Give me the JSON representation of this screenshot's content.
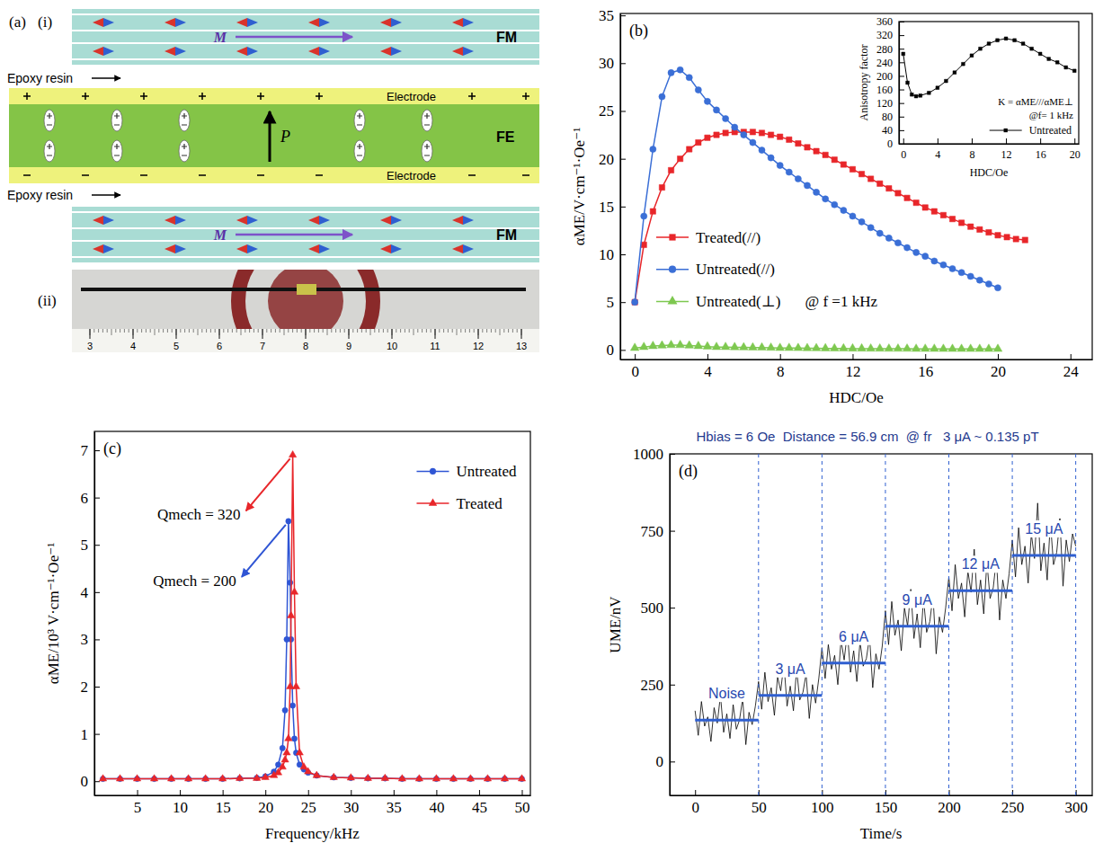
{
  "diagram": {
    "label": "(a)",
    "parts": [
      {
        "label": "(i)",
        "layers": [
          {
            "name": "FM",
            "arrow": "M"
          },
          {
            "name": "Epoxy resin"
          },
          {
            "name": "Electrode"
          },
          {
            "name": "FE",
            "arrow": "P"
          },
          {
            "name": "Electrode"
          },
          {
            "name": "Epoxy resin"
          },
          {
            "name": "FM",
            "arrow": "M"
          }
        ]
      },
      {
        "label": "(ii)",
        "ruler": [
          3,
          4,
          5,
          6,
          7,
          8,
          9,
          10,
          11,
          12,
          13
        ]
      }
    ]
  },
  "chart_data": [
    {
      "type": "line",
      "label": "(b)",
      "x_label": "HDC/Oe",
      "y_label": "αME/V·cm⁻¹·Oe⁻¹",
      "xlim": [
        -0.8,
        25.2
      ],
      "xticks": [
        0,
        4,
        8,
        12,
        16,
        20,
        24
      ],
      "ylim": [
        -1,
        35.2
      ],
      "yticks": [
        0,
        5,
        10,
        15,
        20,
        25,
        30,
        35
      ],
      "legend": "lower left",
      "annotation": "@ f =1 kHz",
      "x": [
        0,
        0.5,
        1,
        1.5,
        2,
        2.5,
        3,
        3.5,
        4,
        4.5,
        5,
        5.5,
        6,
        6.5,
        7,
        7.5,
        8,
        8.5,
        9,
        9.5,
        10,
        10.5,
        11,
        11.5,
        12,
        12.5,
        13,
        13.5,
        14,
        14.5,
        15,
        15.5,
        16,
        16.5,
        17,
        17.5,
        18,
        18.5,
        19,
        19.5,
        20,
        20.5,
        21,
        21.5
      ],
      "series": [
        {
          "name": "Treated(//)",
          "color": "#e8262a",
          "marker": "square",
          "values": [
            5,
            11,
            14.5,
            17,
            18.8,
            20,
            21,
            21.7,
            22.2,
            22.5,
            22.7,
            22.8,
            22.8,
            22.8,
            22.7,
            22.5,
            22.3,
            22,
            21.6,
            21.2,
            20.8,
            20.4,
            19.9,
            19.4,
            18.9,
            18.4,
            17.9,
            17.4,
            16.9,
            16.4,
            15.9,
            15.4,
            14.9,
            14.5,
            14.1,
            13.7,
            13.3,
            12.9,
            12.6,
            12.3,
            12,
            11.8,
            11.6,
            11.5
          ]
        },
        {
          "name": "Untreated(//)",
          "color": "#3b6fd6",
          "marker": "circle",
          "values": [
            5,
            14,
            21,
            26.5,
            29,
            29.3,
            28.5,
            27.2,
            26,
            25.1,
            24.2,
            23.3,
            22.5,
            21.7,
            20.9,
            20.1,
            19.3,
            18.6,
            17.9,
            17.2,
            16.5,
            15.8,
            15.2,
            14.6,
            14,
            13.4,
            12.8,
            12.2,
            11.7,
            11.2,
            10.7,
            10.2,
            9.8,
            9.3,
            8.9,
            8.5,
            8.1,
            7.7,
            7.3,
            6.9,
            6.5,
            null,
            null,
            null
          ]
        },
        {
          "name": "Untreated(⊥)",
          "color": "#7ec850",
          "marker": "triangle",
          "values": [
            0.2,
            0.3,
            0.4,
            0.45,
            0.5,
            0.5,
            0.45,
            0.4,
            0.35,
            0.3,
            0.3,
            0.28,
            0.26,
            0.25,
            0.24,
            0.22,
            0.2,
            0.2,
            0.19,
            0.18,
            0.17,
            0.16,
            0.15,
            0.15,
            0.14,
            0.14,
            0.13,
            0.13,
            0.12,
            0.12,
            0.12,
            0.11,
            0.11,
            0.11,
            0.1,
            0.1,
            0.1,
            0.1,
            0.1,
            0.1,
            0.1,
            null,
            null,
            null
          ]
        }
      ]
    },
    {
      "type": "line",
      "x_label": "HDC/Oe",
      "y_label": "Anisotropy factor",
      "xlim": [
        -0.5,
        20.5
      ],
      "xticks": [
        0,
        4,
        8,
        12,
        16,
        20
      ],
      "ylim": [
        0,
        360
      ],
      "yticks": [
        0,
        40,
        80,
        120,
        160,
        200,
        240,
        280,
        320,
        360
      ],
      "legend": "lower right",
      "annotations": [
        "K = αME///αME⊥",
        "@f= 1 kHz"
      ],
      "x": [
        0,
        0.5,
        1,
        1.5,
        2,
        3,
        4,
        5,
        6,
        7,
        8,
        9,
        10,
        11,
        12,
        13,
        14,
        15,
        16,
        17,
        18,
        19,
        20
      ],
      "series": [
        {
          "name": "Untreated",
          "color": "#000000",
          "marker": "square",
          "values": [
            265,
            180,
            145,
            140,
            142,
            150,
            165,
            185,
            210,
            235,
            260,
            280,
            295,
            305,
            310,
            305,
            295,
            280,
            265,
            250,
            240,
            225,
            215
          ]
        }
      ]
    },
    {
      "type": "line",
      "label": "(c)",
      "x_label": "Frequency/kHz",
      "y_label": "αME/10³ V·cm⁻¹·Oe⁻¹",
      "xlim": [
        0,
        51
      ],
      "xticks": [
        5,
        10,
        15,
        20,
        25,
        30,
        35,
        40,
        45,
        50
      ],
      "ylim": [
        -0.3,
        7.4
      ],
      "yticks": [
        0,
        1,
        2,
        3,
        4,
        5,
        6,
        7
      ],
      "legend": "upper right",
      "x": [
        1,
        3,
        5,
        7,
        9,
        11,
        13,
        15,
        17,
        19,
        20,
        21,
        21.5,
        22,
        22.3,
        22.5,
        22.7,
        22.9,
        23,
        23.2,
        23.4,
        23.6,
        24,
        24.5,
        25,
        26,
        28,
        30,
        32,
        34,
        36,
        38,
        40,
        42,
        44,
        46,
        48,
        50
      ],
      "series": [
        {
          "name": "Untreated",
          "color": "#2f55d4",
          "marker": "circle",
          "annotation": "Qmech = 200",
          "values": [
            0.05,
            0.05,
            0.05,
            0.05,
            0.05,
            0.05,
            0.05,
            0.05,
            0.06,
            0.07,
            0.1,
            0.2,
            0.35,
            0.7,
            1.5,
            3,
            5.5,
            4.2,
            3,
            1.6,
            0.9,
            0.6,
            0.35,
            0.25,
            0.18,
            0.12,
            0.08,
            0.07,
            0.06,
            0.06,
            0.05,
            0.05,
            0.05,
            0.05,
            0.05,
            0.05,
            0.05,
            0.05
          ]
        },
        {
          "name": "Treated",
          "color": "#e8262a",
          "marker": "triangle",
          "annotation": "Qmech = 320",
          "values": [
            0.05,
            0.05,
            0.05,
            0.05,
            0.05,
            0.05,
            0.05,
            0.05,
            0.06,
            0.06,
            0.08,
            0.12,
            0.18,
            0.3,
            0.45,
            0.6,
            0.9,
            2,
            3.5,
            6.9,
            4,
            2,
            0.6,
            0.3,
            0.2,
            0.12,
            0.08,
            0.07,
            0.06,
            0.06,
            0.05,
            0.05,
            0.05,
            0.05,
            0.05,
            0.05,
            0.05,
            0.05
          ]
        }
      ]
    },
    {
      "type": "line",
      "label": "(d)",
      "title": "Hbias = 6 Oe  Distance = 56.9 cm  @ fr   3 μA ~ 0.135 pT",
      "x_label": "Time/s",
      "y_label": "UME/nV",
      "xlim": [
        -20,
        313
      ],
      "xticks": [
        0,
        50,
        100,
        150,
        200,
        250,
        300
      ],
      "ylim": [
        -110,
        1000
      ],
      "yticks": [
        0,
        250,
        500,
        750,
        1000
      ],
      "x": [
        0,
        2.5,
        5,
        7.5,
        10,
        12.5,
        15,
        17.5,
        20,
        22.5,
        25,
        27.5,
        30,
        32.5,
        35,
        37.5,
        40,
        42.5,
        45,
        47.5,
        50,
        52.5,
        55,
        57.5,
        60,
        62.5,
        65,
        67.5,
        70,
        72.5,
        75,
        77.5,
        80,
        82.5,
        85,
        87.5,
        90,
        92.5,
        95,
        97.5,
        100,
        102.5,
        105,
        107.5,
        110,
        112.5,
        115,
        117.5,
        120,
        122.5,
        125,
        127.5,
        130,
        132.5,
        135,
        137.5,
        140,
        142.5,
        145,
        147.5,
        150,
        152.5,
        155,
        157.5,
        160,
        162.5,
        165,
        167.5,
        170,
        172.5,
        175,
        177.5,
        180,
        182.5,
        185,
        187.5,
        190,
        192.5,
        195,
        197.5,
        200,
        202.5,
        205,
        207.5,
        210,
        212.5,
        215,
        217.5,
        220,
        222.5,
        225,
        227.5,
        230,
        232.5,
        235,
        237.5,
        240,
        242.5,
        245,
        247.5,
        250,
        252.5,
        255,
        257.5,
        260,
        262.5,
        265,
        267.5,
        270,
        272.5,
        275,
        277.5,
        280,
        282.5,
        285,
        287.5,
        290,
        292.5,
        295,
        297.5,
        300
      ],
      "series": [
        {
          "color": "#000000",
          "values": [
            165,
            85,
            195,
            115,
            145,
            65,
            175,
            125,
            215,
            95,
            155,
            75,
            185,
            105,
            135,
            205,
            55,
            160,
            120,
            180,
            260,
            170,
            290,
            195,
            240,
            150,
            275,
            230,
            320,
            180,
            245,
            165,
            300,
            200,
            225,
            285,
            140,
            250,
            190,
            270,
            370,
            270,
            380,
            300,
            345,
            250,
            395,
            330,
            420,
            290,
            360,
            260,
            390,
            310,
            335,
            405,
            240,
            350,
            300,
            375,
            490,
            380,
            520,
            410,
            460,
            360,
            500,
            440,
            560,
            400,
            480,
            370,
            530,
            420,
            455,
            540,
            350,
            470,
            420,
            500,
            600,
            490,
            640,
            530,
            580,
            470,
            620,
            550,
            690,
            510,
            590,
            480,
            650,
            530,
            565,
            660,
            460,
            590,
            530,
            610,
            720,
            600,
            760,
            640,
            700,
            580,
            740,
            660,
            840,
            620,
            710,
            590,
            780,
            640,
            680,
            790,
            570,
            720,
            650,
            740,
            700
          ]
        }
      ],
      "segments": [
        {
          "label": "Noise",
          "start": 0,
          "end": 50,
          "value": 135
        },
        {
          "label": "3 μA",
          "start": 50,
          "end": 100,
          "value": 215
        },
        {
          "label": "6 μA",
          "start": 100,
          "end": 150,
          "value": 320
        },
        {
          "label": "9 μA",
          "start": 150,
          "end": 200,
          "value": 440
        },
        {
          "label": "12 μA",
          "start": 200,
          "end": 250,
          "value": 555
        },
        {
          "label": "15 μA",
          "start": 250,
          "end": 300,
          "value": 670
        }
      ]
    }
  ]
}
